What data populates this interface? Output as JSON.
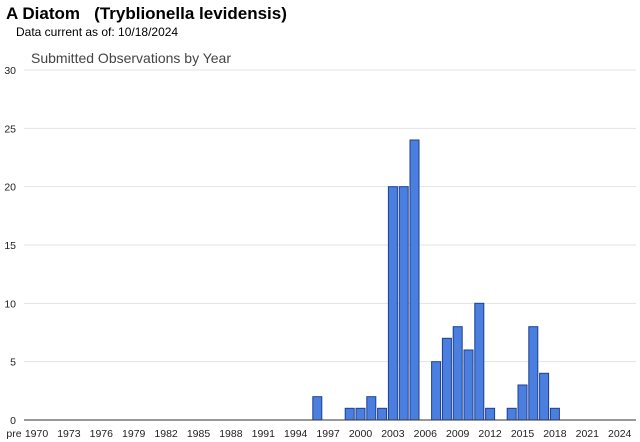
{
  "header": {
    "title": "A Diatom   (Tryblionella levidensis)",
    "subtitle": "Data current as of: 10/18/2024"
  },
  "chart_data": {
    "type": "bar",
    "title": "Submitted Observations by Year",
    "xlabel": "",
    "ylabel": "",
    "ylim": [
      0,
      30
    ],
    "yticks": [
      0,
      5,
      10,
      15,
      20,
      25,
      30
    ],
    "grid": true,
    "colors": {
      "bar_fill": "#4a7fe0",
      "bar_stroke": "#1d3f8f"
    },
    "xtick_labels": [
      "pre",
      "1970",
      "1973",
      "1976",
      "1979",
      "1982",
      "1985",
      "1988",
      "1991",
      "1994",
      "1997",
      "2000",
      "2003",
      "2006",
      "2009",
      "2012",
      "2015",
      "2018",
      "2021",
      "2024"
    ],
    "categories": [
      "pre",
      "1970",
      "1971",
      "1972",
      "1973",
      "1974",
      "1975",
      "1976",
      "1977",
      "1978",
      "1979",
      "1980",
      "1981",
      "1982",
      "1983",
      "1984",
      "1985",
      "1986",
      "1987",
      "1988",
      "1989",
      "1990",
      "1991",
      "1992",
      "1993",
      "1994",
      "1995",
      "1996",
      "1997",
      "1998",
      "1999",
      "2000",
      "2001",
      "2002",
      "2003",
      "2004",
      "2005",
      "2006",
      "2007",
      "2008",
      "2009",
      "2010",
      "2011",
      "2012",
      "2013",
      "2014",
      "2015",
      "2016",
      "2017",
      "2018",
      "2019",
      "2020",
      "2021",
      "2022",
      "2023",
      "2024"
    ],
    "values": [
      0,
      0,
      0,
      0,
      0,
      0,
      0,
      0,
      0,
      0,
      0,
      0,
      0,
      0,
      0,
      0,
      0,
      0,
      0,
      0,
      0,
      0,
      0,
      0,
      0,
      0,
      0,
      2,
      0,
      0,
      1,
      1,
      2,
      1,
      20,
      20,
      24,
      0,
      5,
      7,
      8,
      6,
      10,
      1,
      0,
      1,
      3,
      8,
      4,
      1,
      0,
      0,
      0,
      0,
      0,
      0
    ]
  }
}
